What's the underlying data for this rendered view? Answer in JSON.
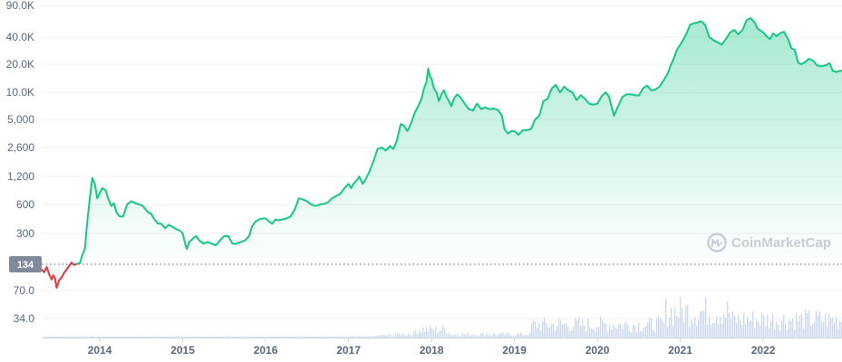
{
  "chart_data": {
    "type": "area",
    "scale_y": "log",
    "grid": true,
    "y_ticks": [
      "90.0K",
      "40.0K",
      "20.0K",
      "10.0K",
      "5,000",
      "2,600",
      "1,200",
      "600",
      "300",
      "70.0",
      "34.0"
    ],
    "y_tick_values": [
      90000,
      40000,
      20000,
      10000,
      5000,
      2600,
      1200,
      600,
      300,
      70,
      34
    ],
    "x_ticks": [
      "2014",
      "2015",
      "2016",
      "2017",
      "2018",
      "2019",
      "2020",
      "2021",
      "2022"
    ],
    "x_tick_values": [
      2014,
      2015,
      2016,
      2017,
      2018,
      2019,
      2020,
      2021,
      2022
    ],
    "xlim": [
      2013.3,
      2022.95
    ],
    "ylim": [
      22,
      90000
    ],
    "reference_value": 134,
    "reference_label": "134",
    "watermark": "CoinMarketCap",
    "colors": {
      "up": "#16c784",
      "down": "#ea3943",
      "fill_top": "#c5f0dc",
      "badge": "#808a9d",
      "volume": "#cfd6e4",
      "grid": "#eff2f5"
    },
    "series": [
      {
        "values": [
          [
            2013.3,
            118
          ],
          [
            2013.33,
            110
          ],
          [
            2013.36,
            125
          ],
          [
            2013.39,
            105
          ],
          [
            2013.42,
            92
          ],
          [
            2013.44,
            102
          ],
          [
            2013.46,
            95
          ],
          [
            2013.48,
            75
          ],
          [
            2013.51,
            90
          ],
          [
            2013.54,
            97
          ],
          [
            2013.57,
            108
          ],
          [
            2013.6,
            118
          ],
          [
            2013.63,
            128
          ],
          [
            2013.66,
            140
          ],
          [
            2013.69,
            132
          ],
          [
            2013.72,
            135
          ],
          [
            2013.76,
            138
          ],
          [
            2013.79,
            170
          ],
          [
            2013.82,
            200
          ],
          [
            2013.85,
            400
          ],
          [
            2013.88,
            700
          ],
          [
            2013.91,
            1150
          ],
          [
            2013.94,
            1000
          ],
          [
            2013.97,
            700
          ],
          [
            2014.0,
            800
          ],
          [
            2014.03,
            900
          ],
          [
            2014.07,
            850
          ],
          [
            2014.1,
            700
          ],
          [
            2014.14,
            580
          ],
          [
            2014.17,
            620
          ],
          [
            2014.2,
            500
          ],
          [
            2014.24,
            450
          ],
          [
            2014.28,
            450
          ],
          [
            2014.33,
            600
          ],
          [
            2014.38,
            650
          ],
          [
            2014.43,
            620
          ],
          [
            2014.48,
            600
          ],
          [
            2014.52,
            580
          ],
          [
            2014.58,
            500
          ],
          [
            2014.62,
            480
          ],
          [
            2014.66,
            420
          ],
          [
            2014.7,
            380
          ],
          [
            2014.74,
            380
          ],
          [
            2014.79,
            340
          ],
          [
            2014.83,
            370
          ],
          [
            2014.88,
            350
          ],
          [
            2014.93,
            330
          ],
          [
            2014.97,
            320
          ],
          [
            2015.0,
            300
          ],
          [
            2015.03,
            230
          ],
          [
            2015.05,
            200
          ],
          [
            2015.08,
            240
          ],
          [
            2015.12,
            260
          ],
          [
            2015.16,
            280
          ],
          [
            2015.2,
            250
          ],
          [
            2015.25,
            230
          ],
          [
            2015.3,
            240
          ],
          [
            2015.35,
            230
          ],
          [
            2015.4,
            220
          ],
          [
            2015.45,
            250
          ],
          [
            2015.5,
            280
          ],
          [
            2015.55,
            280
          ],
          [
            2015.6,
            230
          ],
          [
            2015.65,
            230
          ],
          [
            2015.7,
            240
          ],
          [
            2015.75,
            250
          ],
          [
            2015.8,
            280
          ],
          [
            2015.84,
            360
          ],
          [
            2015.88,
            400
          ],
          [
            2015.92,
            420
          ],
          [
            2015.96,
            430
          ],
          [
            2016.0,
            430
          ],
          [
            2016.04,
            400
          ],
          [
            2016.08,
            380
          ],
          [
            2016.12,
            420
          ],
          [
            2016.16,
            410
          ],
          [
            2016.2,
            420
          ],
          [
            2016.25,
            430
          ],
          [
            2016.3,
            450
          ],
          [
            2016.35,
            530
          ],
          [
            2016.4,
            700
          ],
          [
            2016.45,
            680
          ],
          [
            2016.5,
            650
          ],
          [
            2016.55,
            600
          ],
          [
            2016.6,
            580
          ],
          [
            2016.65,
            600
          ],
          [
            2016.7,
            610
          ],
          [
            2016.75,
            630
          ],
          [
            2016.8,
            700
          ],
          [
            2016.85,
            740
          ],
          [
            2016.9,
            780
          ],
          [
            2016.95,
            900
          ],
          [
            2017.0,
            1000
          ],
          [
            2017.03,
            900
          ],
          [
            2017.06,
            1000
          ],
          [
            2017.1,
            1100
          ],
          [
            2017.13,
            1200
          ],
          [
            2017.17,
            1000
          ],
          [
            2017.2,
            1100
          ],
          [
            2017.25,
            1350
          ],
          [
            2017.3,
            1800
          ],
          [
            2017.35,
            2500
          ],
          [
            2017.4,
            2600
          ],
          [
            2017.45,
            2400
          ],
          [
            2017.5,
            2700
          ],
          [
            2017.54,
            2500
          ],
          [
            2017.58,
            3000
          ],
          [
            2017.63,
            4500
          ],
          [
            2017.67,
            4300
          ],
          [
            2017.71,
            3800
          ],
          [
            2017.75,
            4500
          ],
          [
            2017.8,
            6000
          ],
          [
            2017.84,
            7000
          ],
          [
            2017.88,
            8500
          ],
          [
            2017.91,
            11000
          ],
          [
            2017.94,
            13000
          ],
          [
            2017.96,
            18000
          ],
          [
            2017.98,
            15000
          ],
          [
            2018.0,
            14000
          ],
          [
            2018.03,
            11000
          ],
          [
            2018.06,
            10000
          ],
          [
            2018.09,
            8000
          ],
          [
            2018.12,
            9500
          ],
          [
            2018.15,
            10500
          ],
          [
            2018.18,
            9000
          ],
          [
            2018.21,
            8000
          ],
          [
            2018.24,
            7000
          ],
          [
            2018.27,
            8500
          ],
          [
            2018.31,
            9500
          ],
          [
            2018.35,
            8800
          ],
          [
            2018.4,
            7500
          ],
          [
            2018.45,
            6500
          ],
          [
            2018.5,
            6300
          ],
          [
            2018.55,
            7500
          ],
          [
            2018.6,
            6500
          ],
          [
            2018.65,
            6800
          ],
          [
            2018.7,
            6500
          ],
          [
            2018.75,
            6600
          ],
          [
            2018.8,
            6400
          ],
          [
            2018.85,
            5500
          ],
          [
            2018.88,
            4000
          ],
          [
            2018.92,
            3600
          ],
          [
            2018.96,
            3800
          ],
          [
            2019.0,
            3800
          ],
          [
            2019.05,
            3500
          ],
          [
            2019.1,
            3900
          ],
          [
            2019.15,
            3900
          ],
          [
            2019.2,
            4000
          ],
          [
            2019.25,
            5000
          ],
          [
            2019.3,
            5500
          ],
          [
            2019.35,
            8000
          ],
          [
            2019.4,
            8500
          ],
          [
            2019.45,
            11000
          ],
          [
            2019.5,
            12000
          ],
          [
            2019.55,
            10000
          ],
          [
            2019.6,
            11500
          ],
          [
            2019.65,
            10500
          ],
          [
            2019.7,
            10000
          ],
          [
            2019.75,
            8200
          ],
          [
            2019.8,
            9300
          ],
          [
            2019.85,
            8500
          ],
          [
            2019.9,
            7500
          ],
          [
            2019.95,
            7300
          ],
          [
            2020.0,
            7500
          ],
          [
            2020.05,
            9000
          ],
          [
            2020.1,
            10000
          ],
          [
            2020.14,
            9000
          ],
          [
            2020.2,
            5500
          ],
          [
            2020.25,
            7000
          ],
          [
            2020.3,
            8800
          ],
          [
            2020.35,
            9500
          ],
          [
            2020.4,
            9500
          ],
          [
            2020.45,
            9300
          ],
          [
            2020.5,
            9200
          ],
          [
            2020.55,
            11000
          ],
          [
            2020.6,
            11800
          ],
          [
            2020.65,
            10500
          ],
          [
            2020.7,
            10700
          ],
          [
            2020.75,
            11500
          ],
          [
            2020.8,
            13500
          ],
          [
            2020.85,
            16000
          ],
          [
            2020.88,
            19000
          ],
          [
            2020.92,
            23000
          ],
          [
            2020.96,
            29000
          ],
          [
            2021.0,
            33000
          ],
          [
            2021.04,
            38000
          ],
          [
            2021.08,
            45000
          ],
          [
            2021.12,
            55000
          ],
          [
            2021.16,
            57000
          ],
          [
            2021.2,
            58000
          ],
          [
            2021.25,
            60000
          ],
          [
            2021.3,
            55000
          ],
          [
            2021.35,
            40000
          ],
          [
            2021.4,
            37000
          ],
          [
            2021.45,
            35000
          ],
          [
            2021.5,
            33000
          ],
          [
            2021.55,
            38000
          ],
          [
            2021.6,
            45000
          ],
          [
            2021.65,
            48000
          ],
          [
            2021.7,
            43000
          ],
          [
            2021.75,
            48000
          ],
          [
            2021.8,
            62000
          ],
          [
            2021.85,
            65000
          ],
          [
            2021.9,
            58000
          ],
          [
            2021.93,
            50000
          ],
          [
            2021.97,
            47000
          ],
          [
            2022.0,
            45000
          ],
          [
            2022.04,
            41000
          ],
          [
            2022.08,
            38000
          ],
          [
            2022.12,
            44000
          ],
          [
            2022.16,
            41000
          ],
          [
            2022.2,
            44000
          ],
          [
            2022.25,
            46000
          ],
          [
            2022.3,
            38000
          ],
          [
            2022.34,
            30000
          ],
          [
            2022.38,
            29000
          ],
          [
            2022.42,
            21000
          ],
          [
            2022.46,
            20000
          ],
          [
            2022.5,
            21000
          ],
          [
            2022.55,
            23000
          ],
          [
            2022.6,
            22000
          ],
          [
            2022.65,
            19500
          ],
          [
            2022.7,
            19000
          ],
          [
            2022.75,
            19500
          ],
          [
            2022.8,
            20500
          ],
          [
            2022.84,
            17000
          ],
          [
            2022.88,
            16500
          ],
          [
            2022.92,
            17000
          ],
          [
            2022.95,
            17000
          ]
        ]
      }
    ]
  }
}
